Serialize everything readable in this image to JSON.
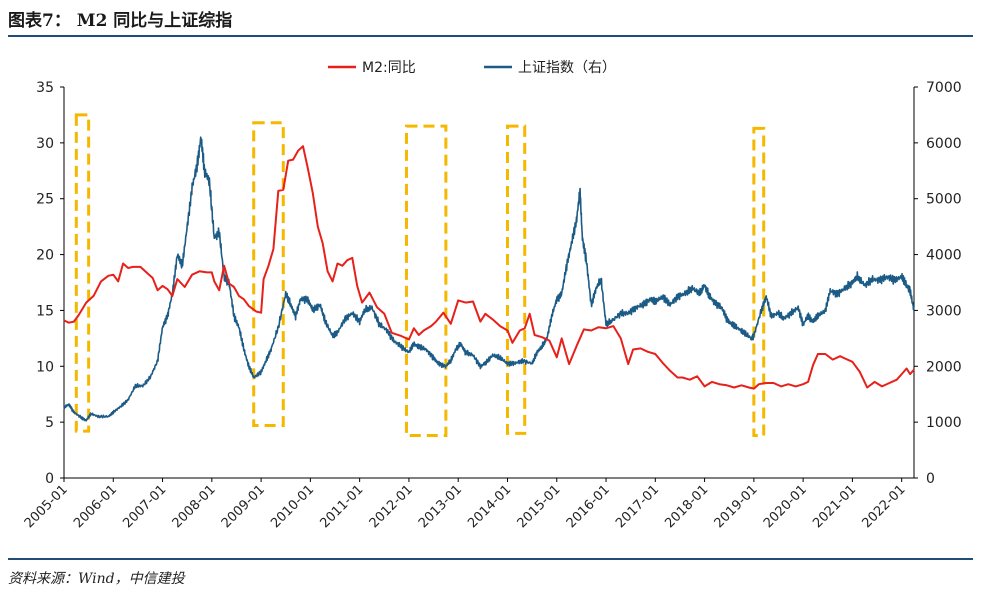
{
  "header": {
    "title": "图表7： M2 同比与上证综指"
  },
  "footer": {
    "source": "资料来源：Wind，中信建投"
  },
  "colors": {
    "m2": "#e8201a",
    "sh": "#1b5b86",
    "highlight": "#f5b800",
    "rule": "#1f4e79"
  },
  "chart_data": {
    "type": "line",
    "title": "M2 同比与上证综指",
    "legend": [
      "M2:同比",
      "上证指数（右）"
    ],
    "legend_position": "top-center",
    "x_tick_labels": [
      "2005-01",
      "2006-01",
      "2007-01",
      "2008-01",
      "2009-01",
      "2010-01",
      "2011-01",
      "2012-01",
      "2013-01",
      "2014-01",
      "2015-01",
      "2016-01",
      "2017-01",
      "2018-01",
      "2019-01",
      "2020-01",
      "2021-01",
      "2022-01"
    ],
    "y_left": {
      "min": 0,
      "max": 35,
      "ticks": [
        0,
        5,
        10,
        15,
        20,
        25,
        30,
        35
      ]
    },
    "y_right": {
      "min": 0,
      "max": 7000,
      "ticks": [
        0,
        1000,
        2000,
        3000,
        4000,
        5000,
        6000,
        7000
      ]
    },
    "grid": false,
    "series": [
      {
        "name": "M2:同比",
        "axis": "left",
        "points": [
          [
            2005.0,
            14.1
          ],
          [
            2005.1,
            13.9
          ],
          [
            2005.2,
            14.0
          ],
          [
            2005.3,
            14.6
          ],
          [
            2005.45,
            15.7
          ],
          [
            2005.6,
            16.3
          ],
          [
            2005.75,
            17.6
          ],
          [
            2005.9,
            18.1
          ],
          [
            2006.0,
            18.2
          ],
          [
            2006.1,
            17.6
          ],
          [
            2006.2,
            19.2
          ],
          [
            2006.3,
            18.8
          ],
          [
            2006.4,
            18.9
          ],
          [
            2006.55,
            18.9
          ],
          [
            2006.7,
            18.3
          ],
          [
            2006.8,
            17.9
          ],
          [
            2006.9,
            16.8
          ],
          [
            2007.0,
            17.2
          ],
          [
            2007.1,
            16.9
          ],
          [
            2007.2,
            16.3
          ],
          [
            2007.3,
            17.8
          ],
          [
            2007.45,
            17.1
          ],
          [
            2007.6,
            18.2
          ],
          [
            2007.75,
            18.5
          ],
          [
            2007.9,
            18.4
          ],
          [
            2008.0,
            18.4
          ],
          [
            2008.05,
            17.6
          ],
          [
            2008.15,
            16.8
          ],
          [
            2008.25,
            19.0
          ],
          [
            2008.35,
            17.4
          ],
          [
            2008.45,
            17.1
          ],
          [
            2008.55,
            16.3
          ],
          [
            2008.65,
            16.0
          ],
          [
            2008.75,
            15.4
          ],
          [
            2008.9,
            14.9
          ],
          [
            2009.0,
            14.8
          ],
          [
            2009.05,
            17.8
          ],
          [
            2009.15,
            19.0
          ],
          [
            2009.25,
            20.5
          ],
          [
            2009.35,
            25.7
          ],
          [
            2009.45,
            25.8
          ],
          [
            2009.55,
            28.4
          ],
          [
            2009.65,
            28.5
          ],
          [
            2009.75,
            29.3
          ],
          [
            2009.85,
            29.7
          ],
          [
            2009.95,
            27.7
          ],
          [
            2010.05,
            25.5
          ],
          [
            2010.15,
            22.5
          ],
          [
            2010.25,
            21.0
          ],
          [
            2010.35,
            18.5
          ],
          [
            2010.45,
            17.6
          ],
          [
            2010.55,
            19.2
          ],
          [
            2010.65,
            19.0
          ],
          [
            2010.75,
            19.5
          ],
          [
            2010.85,
            19.7
          ],
          [
            2010.95,
            17.2
          ],
          [
            2011.05,
            15.7
          ],
          [
            2011.2,
            16.6
          ],
          [
            2011.35,
            15.3
          ],
          [
            2011.5,
            14.7
          ],
          [
            2011.65,
            13.0
          ],
          [
            2011.85,
            12.7
          ],
          [
            2012.0,
            12.4
          ],
          [
            2012.1,
            13.4
          ],
          [
            2012.2,
            12.8
          ],
          [
            2012.3,
            13.2
          ],
          [
            2012.45,
            13.6
          ],
          [
            2012.55,
            14.0
          ],
          [
            2012.7,
            14.8
          ],
          [
            2012.85,
            13.8
          ],
          [
            2013.0,
            15.9
          ],
          [
            2013.15,
            15.7
          ],
          [
            2013.3,
            15.8
          ],
          [
            2013.45,
            14.0
          ],
          [
            2013.55,
            14.7
          ],
          [
            2013.7,
            14.2
          ],
          [
            2013.85,
            13.6
          ],
          [
            2014.0,
            13.2
          ],
          [
            2014.1,
            12.1
          ],
          [
            2014.25,
            13.2
          ],
          [
            2014.35,
            13.4
          ],
          [
            2014.45,
            14.7
          ],
          [
            2014.55,
            12.8
          ],
          [
            2014.7,
            12.6
          ],
          [
            2014.85,
            12.3
          ],
          [
            2015.0,
            10.8
          ],
          [
            2015.1,
            12.5
          ],
          [
            2015.25,
            10.2
          ],
          [
            2015.4,
            11.8
          ],
          [
            2015.55,
            13.3
          ],
          [
            2015.7,
            13.2
          ],
          [
            2015.85,
            13.5
          ],
          [
            2016.0,
            13.4
          ],
          [
            2016.15,
            13.6
          ],
          [
            2016.3,
            12.5
          ],
          [
            2016.45,
            10.2
          ],
          [
            2016.55,
            11.5
          ],
          [
            2016.7,
            11.6
          ],
          [
            2016.85,
            11.3
          ],
          [
            2017.0,
            11.1
          ],
          [
            2017.15,
            10.3
          ],
          [
            2017.3,
            9.6
          ],
          [
            2017.45,
            9.0
          ],
          [
            2017.55,
            9.0
          ],
          [
            2017.7,
            8.8
          ],
          [
            2017.85,
            9.1
          ],
          [
            2018.0,
            8.2
          ],
          [
            2018.15,
            8.6
          ],
          [
            2018.3,
            8.4
          ],
          [
            2018.45,
            8.3
          ],
          [
            2018.6,
            8.1
          ],
          [
            2018.75,
            8.3
          ],
          [
            2018.9,
            8.1
          ],
          [
            2019.0,
            8.0
          ],
          [
            2019.1,
            8.4
          ],
          [
            2019.25,
            8.5
          ],
          [
            2019.4,
            8.5
          ],
          [
            2019.55,
            8.2
          ],
          [
            2019.7,
            8.4
          ],
          [
            2019.85,
            8.2
          ],
          [
            2020.0,
            8.4
          ],
          [
            2020.1,
            8.6
          ],
          [
            2020.2,
            10.1
          ],
          [
            2020.3,
            11.1
          ],
          [
            2020.45,
            11.1
          ],
          [
            2020.6,
            10.6
          ],
          [
            2020.75,
            10.9
          ],
          [
            2020.85,
            10.7
          ],
          [
            2021.0,
            10.4
          ],
          [
            2021.15,
            9.5
          ],
          [
            2021.3,
            8.1
          ],
          [
            2021.45,
            8.6
          ],
          [
            2021.6,
            8.2
          ],
          [
            2021.75,
            8.5
          ],
          [
            2021.9,
            8.8
          ],
          [
            2022.0,
            9.3
          ],
          [
            2022.1,
            9.8
          ],
          [
            2022.17,
            9.3
          ],
          [
            2022.25,
            9.7
          ]
        ]
      },
      {
        "name": "上证指数（右）",
        "axis": "right",
        "points": [
          [
            2005.0,
            1260
          ],
          [
            2005.1,
            1320
          ],
          [
            2005.2,
            1180
          ],
          [
            2005.35,
            1080
          ],
          [
            2005.45,
            1030
          ],
          [
            2005.55,
            1150
          ],
          [
            2005.7,
            1100
          ],
          [
            2005.9,
            1100
          ],
          [
            2006.0,
            1180
          ],
          [
            2006.15,
            1280
          ],
          [
            2006.3,
            1400
          ],
          [
            2006.45,
            1650
          ],
          [
            2006.6,
            1650
          ],
          [
            2006.75,
            1800
          ],
          [
            2006.9,
            2100
          ],
          [
            2007.0,
            2700
          ],
          [
            2007.1,
            2900
          ],
          [
            2007.2,
            3300
          ],
          [
            2007.3,
            4000
          ],
          [
            2007.4,
            3800
          ],
          [
            2007.5,
            4500
          ],
          [
            2007.6,
            5200
          ],
          [
            2007.7,
            5600
          ],
          [
            2007.78,
            6100
          ],
          [
            2007.85,
            5500
          ],
          [
            2007.95,
            5300
          ],
          [
            2008.05,
            4300
          ],
          [
            2008.15,
            4400
          ],
          [
            2008.25,
            3600
          ],
          [
            2008.35,
            3500
          ],
          [
            2008.45,
            2900
          ],
          [
            2008.55,
            2700
          ],
          [
            2008.65,
            2300
          ],
          [
            2008.75,
            2000
          ],
          [
            2008.85,
            1800
          ],
          [
            2009.0,
            1900
          ],
          [
            2009.1,
            2100
          ],
          [
            2009.2,
            2300
          ],
          [
            2009.35,
            2700
          ],
          [
            2009.5,
            3300
          ],
          [
            2009.6,
            3100
          ],
          [
            2009.7,
            2900
          ],
          [
            2009.8,
            3200
          ],
          [
            2009.95,
            3200
          ],
          [
            2010.05,
            3000
          ],
          [
            2010.2,
            3100
          ],
          [
            2010.3,
            2800
          ],
          [
            2010.45,
            2550
          ],
          [
            2010.55,
            2600
          ],
          [
            2010.7,
            2850
          ],
          [
            2010.85,
            2950
          ],
          [
            2011.0,
            2800
          ],
          [
            2011.1,
            3000
          ],
          [
            2011.25,
            3050
          ],
          [
            2011.4,
            2750
          ],
          [
            2011.55,
            2650
          ],
          [
            2011.7,
            2450
          ],
          [
            2011.85,
            2350
          ],
          [
            2012.0,
            2250
          ],
          [
            2012.1,
            2400
          ],
          [
            2012.2,
            2350
          ],
          [
            2012.35,
            2300
          ],
          [
            2012.5,
            2150
          ],
          [
            2012.6,
            2050
          ],
          [
            2012.75,
            2000
          ],
          [
            2012.85,
            2100
          ],
          [
            2012.95,
            2300
          ],
          [
            2013.05,
            2400
          ],
          [
            2013.15,
            2250
          ],
          [
            2013.3,
            2200
          ],
          [
            2013.45,
            2000
          ],
          [
            2013.55,
            2050
          ],
          [
            2013.7,
            2200
          ],
          [
            2013.85,
            2150
          ],
          [
            2014.0,
            2050
          ],
          [
            2014.15,
            2050
          ],
          [
            2014.3,
            2100
          ],
          [
            2014.5,
            2050
          ],
          [
            2014.6,
            2250
          ],
          [
            2014.7,
            2350
          ],
          [
            2014.8,
            2500
          ],
          [
            2014.9,
            2900
          ],
          [
            2015.0,
            3200
          ],
          [
            2015.1,
            3300
          ],
          [
            2015.2,
            3800
          ],
          [
            2015.3,
            4200
          ],
          [
            2015.4,
            4600
          ],
          [
            2015.47,
            5150
          ],
          [
            2015.52,
            4300
          ],
          [
            2015.6,
            3900
          ],
          [
            2015.7,
            3100
          ],
          [
            2015.8,
            3400
          ],
          [
            2015.9,
            3550
          ],
          [
            2016.0,
            2750
          ],
          [
            2016.1,
            2800
          ],
          [
            2016.3,
            2950
          ],
          [
            2016.45,
            2950
          ],
          [
            2016.6,
            3050
          ],
          [
            2016.75,
            3100
          ],
          [
            2016.9,
            3200
          ],
          [
            2017.0,
            3150
          ],
          [
            2017.15,
            3250
          ],
          [
            2017.3,
            3100
          ],
          [
            2017.45,
            3250
          ],
          [
            2017.6,
            3300
          ],
          [
            2017.75,
            3400
          ],
          [
            2017.9,
            3300
          ],
          [
            2018.0,
            3450
          ],
          [
            2018.1,
            3250
          ],
          [
            2018.2,
            3150
          ],
          [
            2018.35,
            3050
          ],
          [
            2018.45,
            2850
          ],
          [
            2018.55,
            2750
          ],
          [
            2018.65,
            2700
          ],
          [
            2018.8,
            2600
          ],
          [
            2018.95,
            2500
          ],
          [
            2019.0,
            2550
          ],
          [
            2019.15,
            3000
          ],
          [
            2019.25,
            3250
          ],
          [
            2019.35,
            2900
          ],
          [
            2019.5,
            2950
          ],
          [
            2019.6,
            2850
          ],
          [
            2019.75,
            2950
          ],
          [
            2019.9,
            3050
          ],
          [
            2020.0,
            2750
          ],
          [
            2020.1,
            2900
          ],
          [
            2020.2,
            2800
          ],
          [
            2020.3,
            2900
          ],
          [
            2020.45,
            3000
          ],
          [
            2020.55,
            3350
          ],
          [
            2020.7,
            3300
          ],
          [
            2020.85,
            3400
          ],
          [
            2021.0,
            3500
          ],
          [
            2021.1,
            3600
          ],
          [
            2021.25,
            3450
          ],
          [
            2021.4,
            3550
          ],
          [
            2021.55,
            3550
          ],
          [
            2021.7,
            3600
          ],
          [
            2021.85,
            3550
          ],
          [
            2022.0,
            3600
          ],
          [
            2022.1,
            3450
          ],
          [
            2022.17,
            3350
          ],
          [
            2022.25,
            3000
          ]
        ]
      }
    ],
    "highlights": [
      {
        "from": 2005.25,
        "to": 2005.5,
        "y_top": 32.5,
        "y_bottom": 4.2
      },
      {
        "from": 2008.85,
        "to": 2009.45,
        "y_top": 31.8,
        "y_bottom": 4.7
      },
      {
        "from": 2011.95,
        "to": 2012.75,
        "y_top": 31.5,
        "y_bottom": 3.8
      },
      {
        "from": 2014.0,
        "to": 2014.35,
        "y_top": 31.5,
        "y_bottom": 4.0
      },
      {
        "from": 2019.0,
        "to": 2019.2,
        "y_top": 31.3,
        "y_bottom": 3.8
      }
    ]
  }
}
